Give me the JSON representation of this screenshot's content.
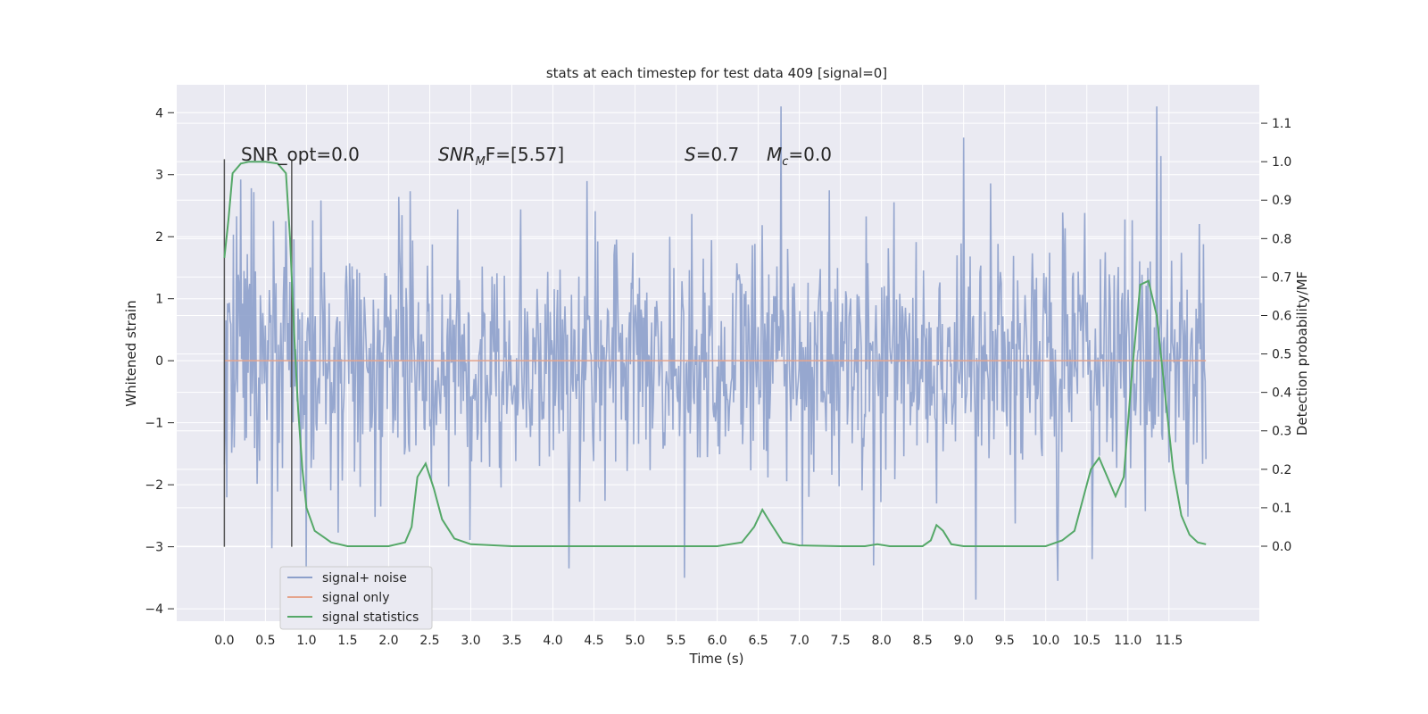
{
  "chart_data": {
    "type": "line",
    "title": "stats at each timestep for test data 409 [signal=0]",
    "xlabel": "Time (s)",
    "ylabel_left": "Whitened strain",
    "ylabel_right": "Detection probability/MF",
    "xlim": [
      -0.58,
      12.6
    ],
    "ylim_left": [
      -4.2,
      4.45
    ],
    "ylim_right": [
      -0.195,
      1.2
    ],
    "x_ticks": [
      "0.0",
      "0.5",
      "1.0",
      "1.5",
      "2.0",
      "2.5",
      "3.0",
      "3.5",
      "4.0",
      "4.5",
      "5.0",
      "5.5",
      "6.0",
      "6.5",
      "7.0",
      "7.5",
      "8.0",
      "8.5",
      "9.0",
      "9.5",
      "10.0",
      "10.5",
      "11.0",
      "11.5"
    ],
    "y_left_ticks": [
      "4",
      "3",
      "2",
      "1",
      "0",
      "−1",
      "−2",
      "−3",
      "−4"
    ],
    "y_right_ticks": [
      "1.1",
      "1.0",
      "0.9",
      "0.8",
      "0.7",
      "0.6",
      "0.5",
      "0.4",
      "0.3",
      "0.2",
      "0.1",
      "0.0"
    ],
    "grid": true,
    "legend_position": "lower-left",
    "annotations": {
      "snr_opt": "SNR_opt=0.0",
      "snr_mf_italic": "SNR",
      "snr_mf_sub": "M",
      "snr_mf_rest": "F=[5.57]",
      "s_italic": "S",
      "s_rest": "=0.7",
      "mc_italic": "M",
      "mc_sub": "c",
      "mc_rest": "=0.0"
    },
    "vlines": [
      0.0,
      0.82
    ],
    "series": [
      {
        "name": "signal+ noise",
        "color": "#8da0cb",
        "note": "noise series: values approx. Gaussian, range about -3.9 to 4.1",
        "x_range": [
          0.0,
          11.95
        ],
        "extremes": [
          {
            "x": 6.78,
            "y": 4.1
          },
          {
            "x": 11.35,
            "y": 4.1
          },
          {
            "x": 9.0,
            "y": 3.6
          },
          {
            "x": 11.4,
            "y": 3.3
          },
          {
            "x": 9.15,
            "y": -3.85
          },
          {
            "x": 10.15,
            "y": -3.55
          },
          {
            "x": 5.6,
            "y": -3.5
          },
          {
            "x": 4.2,
            "y": -3.35
          },
          {
            "x": 7.9,
            "y": -3.3
          },
          {
            "x": 1.0,
            "y": -3.4
          }
        ]
      },
      {
        "name": "signal only",
        "color": "#e5a48c",
        "x": [
          0.0,
          11.95
        ],
        "y": [
          0.0,
          0.0
        ]
      },
      {
        "name": "signal statistics",
        "color": "#55a868",
        "axis": "right",
        "x": [
          0.0,
          0.05,
          0.1,
          0.2,
          0.3,
          0.5,
          0.65,
          0.75,
          0.8,
          0.85,
          0.9,
          0.95,
          1.0,
          1.1,
          1.2,
          1.3,
          1.5,
          2.0,
          2.2,
          2.28,
          2.35,
          2.45,
          2.55,
          2.65,
          2.8,
          3.0,
          3.5,
          4.0,
          5.0,
          6.0,
          6.3,
          6.45,
          6.55,
          6.65,
          6.8,
          7.0,
          7.5,
          7.8,
          7.95,
          8.1,
          8.5,
          8.6,
          8.67,
          8.75,
          8.85,
          9.0,
          9.5,
          10.0,
          10.2,
          10.35,
          10.45,
          10.55,
          10.65,
          10.75,
          10.85,
          10.95,
          11.05,
          11.15,
          11.25,
          11.35,
          11.45,
          11.55,
          11.65,
          11.75,
          11.85,
          11.95
        ],
        "y": [
          0.75,
          0.85,
          0.97,
          0.995,
          1.0,
          1.0,
          0.995,
          0.97,
          0.8,
          0.55,
          0.35,
          0.2,
          0.1,
          0.04,
          0.025,
          0.01,
          0.0,
          0.0,
          0.01,
          0.05,
          0.18,
          0.215,
          0.15,
          0.07,
          0.02,
          0.005,
          0.0,
          0.0,
          0.0,
          0.0,
          0.01,
          0.05,
          0.095,
          0.06,
          0.01,
          0.002,
          0.0,
          0.0,
          0.005,
          0.0,
          0.0,
          0.015,
          0.055,
          0.04,
          0.005,
          0.0,
          0.0,
          0.0,
          0.015,
          0.04,
          0.12,
          0.2,
          0.23,
          0.18,
          0.13,
          0.18,
          0.45,
          0.68,
          0.69,
          0.6,
          0.4,
          0.2,
          0.08,
          0.03,
          0.01,
          0.005
        ]
      }
    ]
  }
}
